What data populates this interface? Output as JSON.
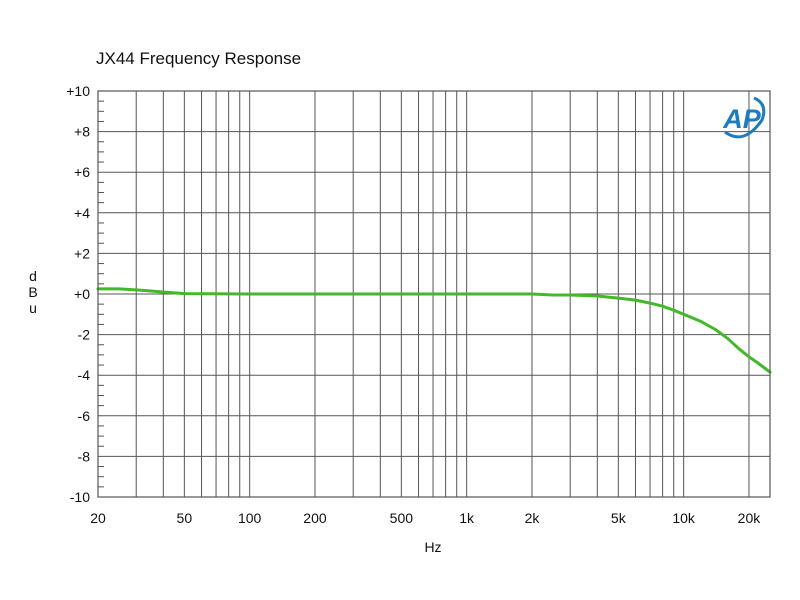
{
  "chart_data": {
    "type": "line",
    "title": "JX44 Frequency Response",
    "xlabel": "Hz",
    "ylabel": "dBu",
    "x_scale": "log",
    "xlim": [
      20,
      25000
    ],
    "ylim": [
      -10,
      10
    ],
    "grid": true,
    "x_ticks": [
      {
        "value": 20,
        "label": "20"
      },
      {
        "value": 50,
        "label": "50"
      },
      {
        "value": 100,
        "label": "100"
      },
      {
        "value": 200,
        "label": "200"
      },
      {
        "value": 500,
        "label": "500"
      },
      {
        "value": 1000,
        "label": "1k"
      },
      {
        "value": 2000,
        "label": "2k"
      },
      {
        "value": 5000,
        "label": "5k"
      },
      {
        "value": 10000,
        "label": "10k"
      },
      {
        "value": 20000,
        "label": "20k"
      }
    ],
    "y_ticks": [
      {
        "value": 10,
        "label": "+10"
      },
      {
        "value": 8,
        "label": "+8"
      },
      {
        "value": 6,
        "label": "+6"
      },
      {
        "value": 4,
        "label": "+4"
      },
      {
        "value": 2,
        "label": "+2"
      },
      {
        "value": 0,
        "label": "+0"
      },
      {
        "value": -2,
        "label": "-2"
      },
      {
        "value": -4,
        "label": "-4"
      },
      {
        "value": -6,
        "label": "-6"
      },
      {
        "value": -8,
        "label": "-8"
      },
      {
        "value": -10,
        "label": "-10"
      }
    ],
    "series": [
      {
        "color": "#44b82a",
        "x": [
          20,
          25,
          30,
          40,
          50,
          100,
          200,
          500,
          1000,
          2000,
          2500,
          3000,
          4000,
          5000,
          6000,
          7000,
          8000,
          9000,
          10000,
          12000,
          14000,
          16000,
          18000,
          20000,
          22000,
          25000
        ],
        "y": [
          0.25,
          0.25,
          0.2,
          0.1,
          0.02,
          0.0,
          0.0,
          0.0,
          0.0,
          0.0,
          -0.05,
          -0.05,
          -0.1,
          -0.2,
          -0.3,
          -0.45,
          -0.6,
          -0.8,
          -1.0,
          -1.35,
          -1.75,
          -2.2,
          -2.7,
          -3.1,
          -3.4,
          -3.85
        ]
      }
    ]
  },
  "logo": {
    "text": "AP",
    "color": "#1f7bbf"
  }
}
